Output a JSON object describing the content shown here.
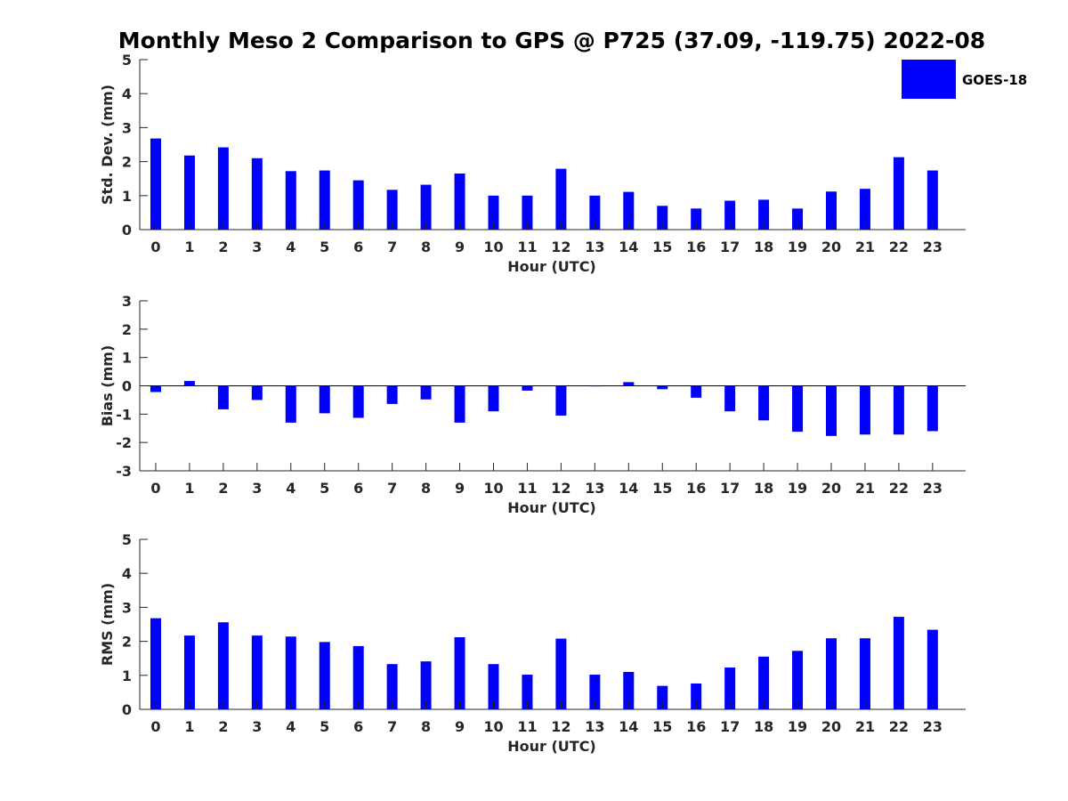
{
  "title": "Monthly Meso 2 Comparison to GPS @ P725 (37.09, -119.75) 2022-08",
  "legend": {
    "label": "GOES-18",
    "color": "#0000ff",
    "placement": "top-right"
  },
  "chart_data": [
    {
      "type": "bar",
      "xlabel": "Hour (UTC)",
      "ylabel": "Std. Dev. (mm)",
      "ylim": [
        0,
        5
      ],
      "yticks": [
        0,
        1,
        2,
        3,
        4,
        5
      ],
      "categories": [
        "0",
        "1",
        "2",
        "3",
        "4",
        "5",
        "6",
        "7",
        "8",
        "9",
        "10",
        "11",
        "12",
        "13",
        "14",
        "15",
        "16",
        "17",
        "18",
        "19",
        "20",
        "21",
        "22",
        "23"
      ],
      "series": [
        {
          "name": "GOES-18",
          "color": "#0000ff",
          "values": [
            2.68,
            2.18,
            2.42,
            2.1,
            1.72,
            1.74,
            1.45,
            1.17,
            1.32,
            1.65,
            1.0,
            1.0,
            1.79,
            1.0,
            1.11,
            0.7,
            0.62,
            0.85,
            0.88,
            0.62,
            1.12,
            1.2,
            2.13,
            1.74
          ]
        }
      ],
      "grid": false
    },
    {
      "type": "bar",
      "xlabel": "Hour (UTC)",
      "ylabel": "Bias (mm)",
      "ylim": [
        -3,
        3
      ],
      "yticks": [
        -3,
        -2,
        -1,
        0,
        1,
        2,
        3
      ],
      "categories": [
        "0",
        "1",
        "2",
        "3",
        "4",
        "5",
        "6",
        "7",
        "8",
        "9",
        "10",
        "11",
        "12",
        "13",
        "14",
        "15",
        "16",
        "17",
        "18",
        "19",
        "20",
        "21",
        "22",
        "23"
      ],
      "series": [
        {
          "name": "GOES-18",
          "color": "#0000ff",
          "values": [
            -0.22,
            0.17,
            -0.83,
            -0.5,
            -1.3,
            -0.97,
            -1.13,
            -0.64,
            -0.48,
            -1.3,
            -0.9,
            -0.17,
            -1.05,
            -0.02,
            0.13,
            -0.12,
            -0.42,
            -0.9,
            -1.22,
            -1.62,
            -1.77,
            -1.72,
            -1.72,
            -1.6
          ]
        }
      ],
      "grid": false
    },
    {
      "type": "bar",
      "xlabel": "Hour (UTC)",
      "ylabel": "RMS (mm)",
      "ylim": [
        0,
        5
      ],
      "yticks": [
        0,
        1,
        2,
        3,
        4,
        5
      ],
      "categories": [
        "0",
        "1",
        "2",
        "3",
        "4",
        "5",
        "6",
        "7",
        "8",
        "9",
        "10",
        "11",
        "12",
        "13",
        "14",
        "15",
        "16",
        "17",
        "18",
        "19",
        "20",
        "21",
        "22",
        "23"
      ],
      "series": [
        {
          "name": "GOES-18",
          "color": "#0000ff",
          "values": [
            2.68,
            2.17,
            2.56,
            2.17,
            2.14,
            1.98,
            1.86,
            1.33,
            1.41,
            2.12,
            1.33,
            1.02,
            2.08,
            1.02,
            1.1,
            0.69,
            0.76,
            1.23,
            1.55,
            1.72,
            2.09,
            2.09,
            2.72,
            2.34
          ]
        }
      ],
      "grid": false
    }
  ]
}
